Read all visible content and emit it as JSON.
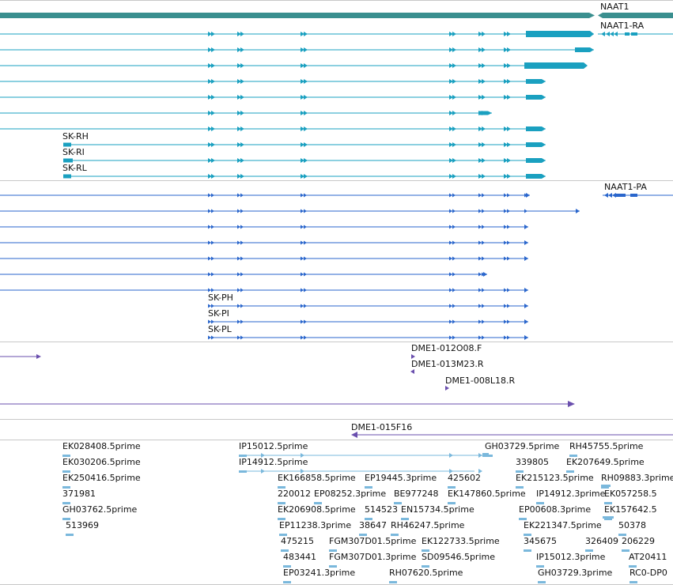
{
  "colors": {
    "gene": "#3a8f8f",
    "transcript_ra": "#1aa0c0",
    "transcript_pa": "#2a66cc",
    "clone": "#6a4fae",
    "est": "#7ab8dc",
    "separator": "#c8c8c8"
  },
  "gene": {
    "label": "NAAT1",
    "arrow": "right"
  },
  "transcript_group_ra": {
    "header_label": "NAAT1-RA",
    "sublabels": [
      "SK-RH",
      "SK-RI",
      "SK-RL"
    ]
  },
  "transcript_group_pa": {
    "header_label": "NAAT1-PA",
    "sublabels": [
      "SK-PH",
      "SK-PI",
      "SK-PL"
    ]
  },
  "clones": {
    "labels": [
      "DME1-012O08.F",
      "DME1-013M23.R",
      "DME1-008L18.R",
      "DME1-015F16"
    ]
  },
  "ests": {
    "labels": [
      "EK028408.5prime",
      "EK030206.5prime",
      "EK250416.5prime",
      "371981",
      "GH03762.5prime",
      "513969",
      "IP15012.5prime",
      "IP14912.5prime",
      "EK166858.5prime",
      "EP19445.3prime",
      "425602",
      "220012",
      "EP08252.3prime",
      "BE977248",
      "EK147860.5prime",
      "EK206908.5prime",
      "514523",
      "EN15734.5prime",
      "EP11238.3prime",
      "38647",
      "RH46247.5prime",
      "475215",
      "FGM307D01.5prime",
      "EK122733.5prime",
      "483441",
      "FGM307D01.3prime",
      "SD09546.5prime",
      "EP03241.3prime",
      "RH07620.5prime",
      "GH03729.5prime",
      "RH45755.5prime",
      "339805",
      "EK207649.5prime",
      "EK215123.5prime",
      "RH09883.3prime",
      "IP14912.3prime",
      "EK057258.5",
      "EP00608.3prime",
      "EK157642.5",
      "EK221347.5prime",
      "50378",
      "345675",
      "326409",
      "206229",
      "IP15012.3prime",
      "AT20411",
      "GH03729.3prime",
      "RC0-DP0"
    ]
  }
}
